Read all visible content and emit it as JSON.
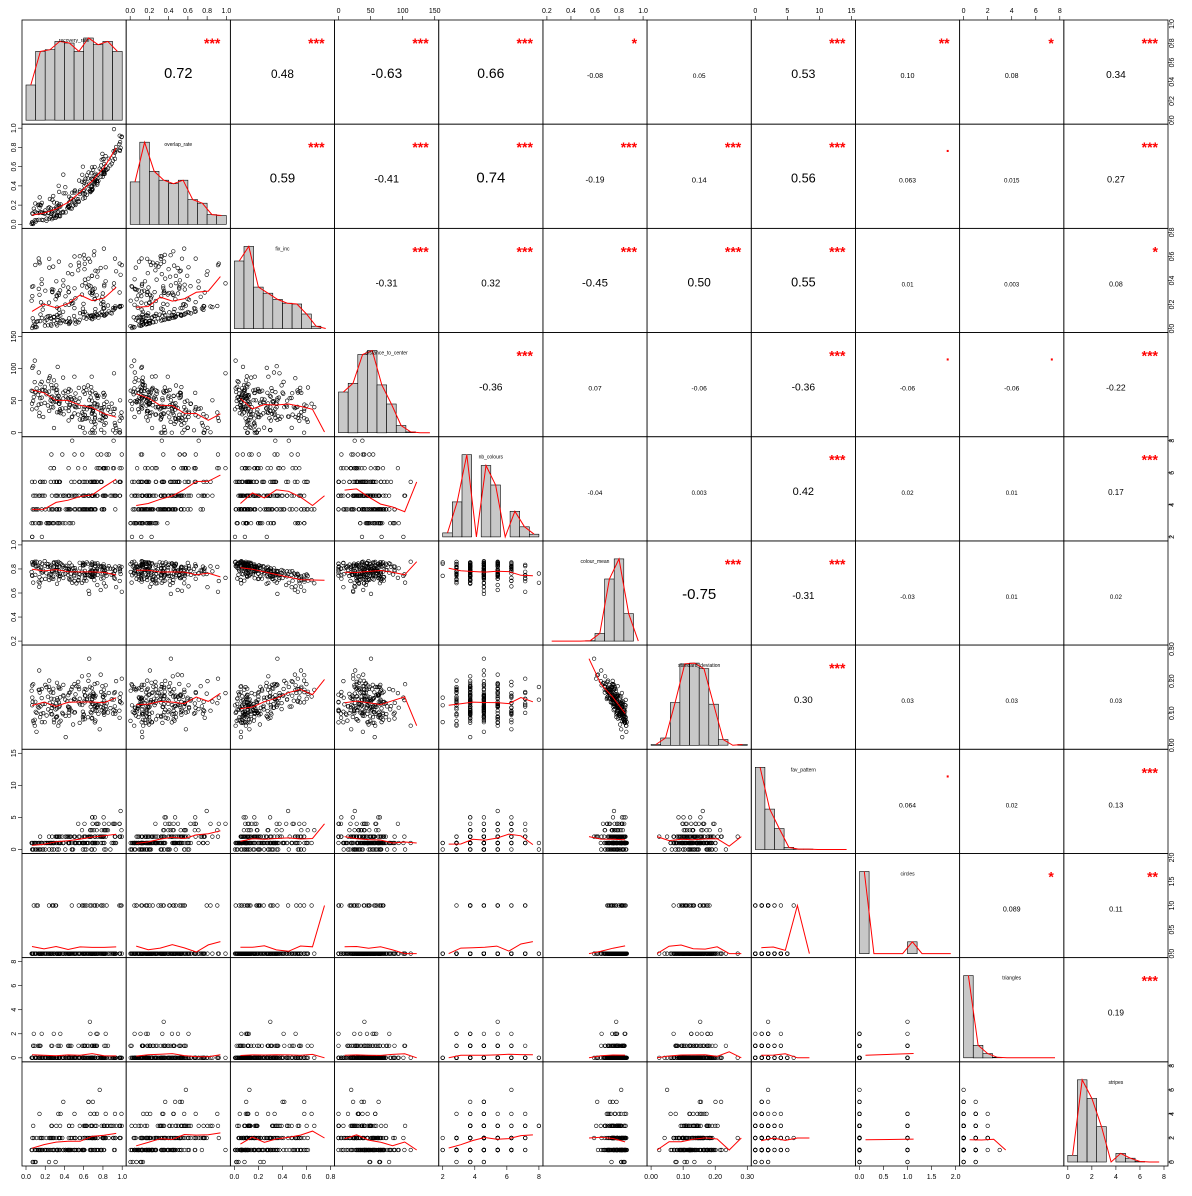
{
  "chart_data": {
    "type": "scatter",
    "title": "",
    "variables": [
      "recovery_rate",
      "overlap_rate",
      "fix_inc",
      "distance_to_center",
      "nb_colours",
      "colour_mean",
      "standard_deviation",
      "fav_pattern",
      "circles",
      "triangles",
      "stripes"
    ],
    "correlations": [
      {
        "row": 0,
        "col": 1,
        "r": "0.72",
        "stars": "***"
      },
      {
        "row": 0,
        "col": 2,
        "r": "0.48",
        "stars": "***"
      },
      {
        "row": 0,
        "col": 3,
        "r": "-0.63",
        "stars": "***"
      },
      {
        "row": 0,
        "col": 4,
        "r": "0.66",
        "stars": "***"
      },
      {
        "row": 0,
        "col": 5,
        "r": "-0.08",
        "stars": "*"
      },
      {
        "row": 0,
        "col": 6,
        "r": "0.05",
        "stars": ""
      },
      {
        "row": 0,
        "col": 7,
        "r": "0.53",
        "stars": "***"
      },
      {
        "row": 0,
        "col": 8,
        "r": "0.10",
        "stars": "**"
      },
      {
        "row": 0,
        "col": 9,
        "r": "0.08",
        "stars": "*"
      },
      {
        "row": 0,
        "col": 10,
        "r": "0.34",
        "stars": "***"
      },
      {
        "row": 1,
        "col": 2,
        "r": "0.59",
        "stars": "***"
      },
      {
        "row": 1,
        "col": 3,
        "r": "-0.41",
        "stars": "***"
      },
      {
        "row": 1,
        "col": 4,
        "r": "0.74",
        "stars": "***"
      },
      {
        "row": 1,
        "col": 5,
        "r": "-0.19",
        "stars": "***"
      },
      {
        "row": 1,
        "col": 6,
        "r": "0.14",
        "stars": "***"
      },
      {
        "row": 1,
        "col": 7,
        "r": "0.56",
        "stars": "***"
      },
      {
        "row": 1,
        "col": 8,
        "r": "0.063",
        "stars": "."
      },
      {
        "row": 1,
        "col": 9,
        "r": "0.015",
        "stars": ""
      },
      {
        "row": 1,
        "col": 10,
        "r": "0.27",
        "stars": "***"
      },
      {
        "row": 2,
        "col": 3,
        "r": "-0.31",
        "stars": "***"
      },
      {
        "row": 2,
        "col": 4,
        "r": "0.32",
        "stars": "***"
      },
      {
        "row": 2,
        "col": 5,
        "r": "-0.45",
        "stars": "***"
      },
      {
        "row": 2,
        "col": 6,
        "r": "0.50",
        "stars": "***"
      },
      {
        "row": 2,
        "col": 7,
        "r": "0.55",
        "stars": "***"
      },
      {
        "row": 2,
        "col": 8,
        "r": "0.01",
        "stars": ""
      },
      {
        "row": 2,
        "col": 9,
        "r": "0.003",
        "stars": ""
      },
      {
        "row": 2,
        "col": 10,
        "r": "0.08",
        "stars": "*"
      },
      {
        "row": 3,
        "col": 4,
        "r": "-0.36",
        "stars": "***"
      },
      {
        "row": 3,
        "col": 5,
        "r": "0.07",
        "stars": ""
      },
      {
        "row": 3,
        "col": 6,
        "r": "-0.06",
        "stars": ""
      },
      {
        "row": 3,
        "col": 7,
        "r": "-0.36",
        "stars": "***"
      },
      {
        "row": 3,
        "col": 8,
        "r": "-0.06",
        "stars": "."
      },
      {
        "row": 3,
        "col": 9,
        "r": "-0.06",
        "stars": "."
      },
      {
        "row": 3,
        "col": 10,
        "r": "-0.22",
        "stars": "***"
      },
      {
        "row": 4,
        "col": 5,
        "r": "-0.04",
        "stars": ""
      },
      {
        "row": 4,
        "col": 6,
        "r": "0.003",
        "stars": ""
      },
      {
        "row": 4,
        "col": 7,
        "r": "0.42",
        "stars": "***"
      },
      {
        "row": 4,
        "col": 8,
        "r": "0.02",
        "stars": ""
      },
      {
        "row": 4,
        "col": 9,
        "r": "0.01",
        "stars": ""
      },
      {
        "row": 4,
        "col": 10,
        "r": "0.17",
        "stars": "***"
      },
      {
        "row": 5,
        "col": 6,
        "r": "-0.75",
        "stars": "***"
      },
      {
        "row": 5,
        "col": 7,
        "r": "-0.31",
        "stars": "***"
      },
      {
        "row": 5,
        "col": 8,
        "r": "-0.03",
        "stars": ""
      },
      {
        "row": 5,
        "col": 9,
        "r": "0.01",
        "stars": ""
      },
      {
        "row": 5,
        "col": 10,
        "r": "0.02",
        "stars": ""
      },
      {
        "row": 6,
        "col": 7,
        "r": "0.30",
        "stars": "***"
      },
      {
        "row": 6,
        "col": 8,
        "r": "0.03",
        "stars": ""
      },
      {
        "row": 6,
        "col": 9,
        "r": "0.03",
        "stars": ""
      },
      {
        "row": 6,
        "col": 10,
        "r": "0.03",
        "stars": ""
      },
      {
        "row": 7,
        "col": 8,
        "r": "0.064",
        "stars": "."
      },
      {
        "row": 7,
        "col": 9,
        "r": "0.02",
        "stars": ""
      },
      {
        "row": 7,
        "col": 10,
        "r": "0.13",
        "stars": "***"
      },
      {
        "row": 8,
        "col": 9,
        "r": "0.089",
        "stars": "*"
      },
      {
        "row": 8,
        "col": 10,
        "r": "0.11",
        "stars": "**"
      },
      {
        "row": 9,
        "col": 10,
        "r": "0.19",
        "stars": "***"
      }
    ],
    "axes_top": [
      {
        "col": 1,
        "ticks": [
          "0.0",
          "0.2",
          "0.4",
          "0.6",
          "0.8",
          "1.0"
        ]
      },
      {
        "col": 3,
        "ticks": [
          "0",
          "50",
          "100",
          "150"
        ]
      },
      {
        "col": 5,
        "ticks": [
          "0.2",
          "0.4",
          "0.6",
          "0.8",
          "1.0"
        ]
      },
      {
        "col": 7,
        "ticks": [
          "0",
          "5",
          "10",
          "15"
        ]
      },
      {
        "col": 9,
        "ticks": [
          "0",
          "2",
          "4",
          "6",
          "8"
        ]
      }
    ],
    "axes_bottom": [
      {
        "col": 0,
        "ticks": [
          "0.0",
          "0.2",
          "0.4",
          "0.6",
          "0.8",
          "1.0"
        ]
      },
      {
        "col": 2,
        "ticks": [
          "0.0",
          "0.2",
          "0.4",
          "0.6",
          "0.8"
        ]
      },
      {
        "col": 4,
        "ticks": [
          "2",
          "4",
          "6",
          "8"
        ]
      },
      {
        "col": 6,
        "ticks": [
          "0.00",
          "0.10",
          "0.20",
          "0.30"
        ]
      },
      {
        "col": 8,
        "ticks": [
          "0.0",
          "0.5",
          "1.0",
          "1.5",
          "2.0"
        ]
      },
      {
        "col": 10,
        "ticks": [
          "0",
          "2",
          "4",
          "6",
          "8"
        ]
      }
    ],
    "axes_left": [
      {
        "row": 1,
        "ticks": [
          "0.0",
          "0.2",
          "0.4",
          "0.6",
          "0.8",
          "1.0"
        ]
      },
      {
        "row": 3,
        "ticks": [
          "0",
          "50",
          "100",
          "150"
        ]
      },
      {
        "row": 5,
        "ticks": [
          "0.2",
          "0.4",
          "0.6",
          "0.8",
          "1.0"
        ]
      },
      {
        "row": 7,
        "ticks": [
          "0",
          "5",
          "10",
          "15"
        ]
      },
      {
        "row": 9,
        "ticks": [
          "0",
          "2",
          "4",
          "6",
          "8"
        ]
      }
    ],
    "axes_right": [
      {
        "row": 0,
        "ticks": [
          "0.0",
          "0.2",
          "0.4",
          "0.6",
          "0.8",
          "1.0"
        ]
      },
      {
        "row": 2,
        "ticks": [
          "0.0",
          "0.2",
          "0.4",
          "0.6",
          "0.8"
        ]
      },
      {
        "row": 4,
        "ticks": [
          "2",
          "4",
          "6",
          "8"
        ]
      },
      {
        "row": 6,
        "ticks": [
          "0.00",
          "0.10",
          "0.20",
          "0.30"
        ]
      },
      {
        "row": 8,
        "ticks": [
          "0.0",
          "0.5",
          "1.0",
          "1.5",
          "2.0"
        ]
      },
      {
        "row": 10,
        "ticks": [
          "0",
          "2",
          "4",
          "6",
          "8"
        ]
      }
    ],
    "colors": {
      "points": "#000000",
      "smooth": "#ff0000",
      "stars": "#ff0000",
      "bars": "#c8c8c8",
      "bar_stroke": "#000000",
      "panel_border": "#000000"
    }
  }
}
